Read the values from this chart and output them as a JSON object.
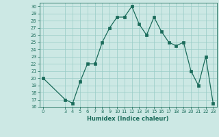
{
  "x": [
    0,
    3,
    4,
    5,
    6,
    7,
    8,
    9,
    10,
    11,
    12,
    13,
    14,
    15,
    16,
    17,
    18,
    19,
    20,
    21,
    22,
    23
  ],
  "y": [
    20,
    17,
    16.5,
    19.5,
    22,
    22,
    25,
    27,
    28.5,
    28.5,
    30,
    27.5,
    26,
    28.5,
    26.5,
    25,
    24.5,
    25,
    21,
    19,
    23,
    16.5
  ],
  "xlim": [
    -0.5,
    23.5
  ],
  "ylim": [
    16,
    30.5
  ],
  "yticks": [
    16,
    17,
    18,
    19,
    20,
    21,
    22,
    23,
    24,
    25,
    26,
    27,
    28,
    29,
    30
  ],
  "xticks": [
    0,
    3,
    4,
    5,
    6,
    7,
    8,
    9,
    10,
    11,
    12,
    13,
    14,
    15,
    16,
    17,
    18,
    19,
    20,
    21,
    22,
    23
  ],
  "xlabel": "Humidex (Indice chaleur)",
  "line_color": "#1a6b5a",
  "marker_color": "#1a6b5a",
  "bg_color": "#cce8e4",
  "grid_color": "#99ccc6",
  "label_color": "#1a6b5a"
}
